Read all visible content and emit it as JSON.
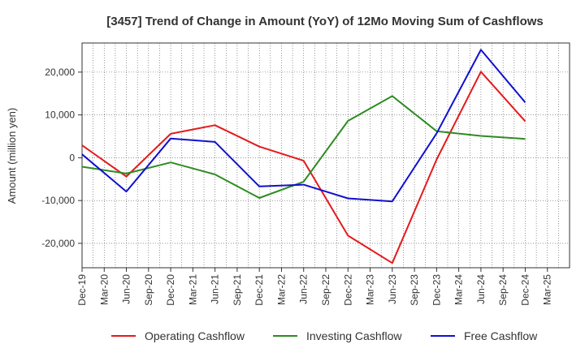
{
  "chart_data": {
    "type": "line",
    "title": "[3457]  Trend of Change in Amount (YoY) of 12Mo Moving Sum of Cashflows",
    "xlabel": "",
    "ylabel": "Amount (million yen)",
    "categories": [
      "Dec-19",
      "Mar-20",
      "Jun-20",
      "Sep-20",
      "Dec-20",
      "Mar-21",
      "Jun-21",
      "Sep-21",
      "Dec-21",
      "Mar-22",
      "Jun-22",
      "Sep-22",
      "Dec-22",
      "Mar-23",
      "Jun-23",
      "Sep-23",
      "Dec-23",
      "Mar-24",
      "Jun-24",
      "Sep-24",
      "Dec-24",
      "Mar-25"
    ],
    "ylim": [
      -25700,
      26800
    ],
    "yticks": [
      -20000,
      -10000,
      0,
      10000,
      20000
    ],
    "ytick_labels": [
      "-20,000",
      "-10,000",
      "0",
      "10,000",
      "20,000"
    ],
    "grid": true,
    "legend_position": "bottom",
    "series": [
      {
        "name": "Operating Cashflow",
        "color": "#e41a1c",
        "values": [
          2900,
          null,
          -4400,
          null,
          5600,
          null,
          7600,
          null,
          2600,
          null,
          -700,
          null,
          -18200,
          null,
          -24600,
          null,
          -400,
          null,
          20100,
          null,
          8500,
          null
        ]
      },
      {
        "name": "Investing Cashflow",
        "color": "#2e8b22",
        "values": [
          -2100,
          null,
          -3700,
          null,
          -1100,
          null,
          -3900,
          null,
          -9400,
          null,
          -5600,
          null,
          8600,
          null,
          14400,
          null,
          6200,
          null,
          5100,
          null,
          4400,
          null
        ]
      },
      {
        "name": "Free Cashflow",
        "color": "#1010d0",
        "values": [
          800,
          null,
          -7900,
          null,
          4500,
          null,
          3700,
          null,
          -6700,
          null,
          -6300,
          null,
          -9500,
          null,
          -10200,
          null,
          5700,
          null,
          25200,
          null,
          12900,
          null
        ]
      }
    ]
  }
}
